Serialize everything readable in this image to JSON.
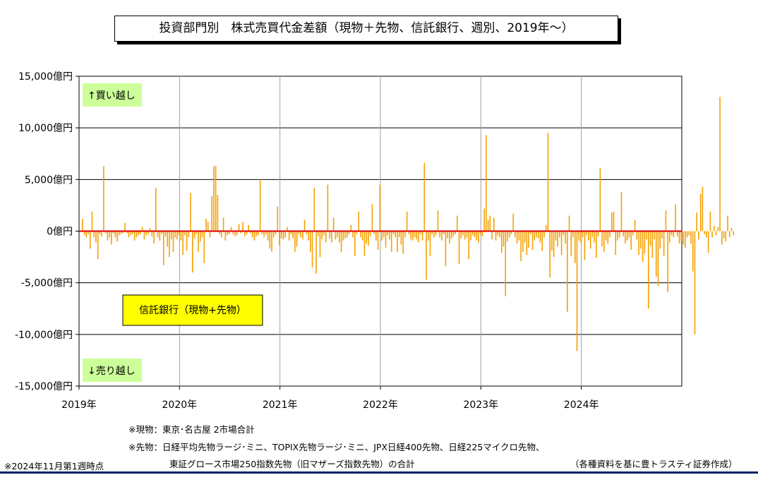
{
  "title": "投資部門別　株式売買代金差額（現物＋先物、信託銀行、週別、2019年～）",
  "legend_label": "信託銀行（現物+先物）",
  "buy_label": "↑買い越し",
  "sell_label": "↓売り越し",
  "notes": {
    "genbutsu": "※現物：東京･名古屋 2市場合計",
    "sakimono_1": "※先物：日経平均先物ラージ･ミニ、TOPIX先物ラージ･ミニ、JPX日経400先物、日経225マイクロ先物、",
    "sakimono_2": "東証グロース市場250指数先物（旧マザーズ指数先物）の合計",
    "as_of": "※2024年11月第1週時点",
    "source": "（各種資料を基に豊トラスティ証券作成）"
  },
  "colors": {
    "bar": "#f5a000",
    "zero_line": "#e00000",
    "grid": "#000000",
    "year_line": "#a0a0a0",
    "label_bg": "#ccff99",
    "legend_bg": "#ffff00",
    "footer": "#002060"
  },
  "chart_data": {
    "type": "bar",
    "title": "投資部門別　株式売買代金差額（現物＋先物、信託銀行、週別、2019年～）",
    "unit": "億円",
    "ylim": [
      -15000,
      15000
    ],
    "yticks": [
      "15,000億円",
      "10,000億円",
      "5,000億円",
      "0億円",
      "-5,000億円",
      "-10,000億円",
      "-15,000億円"
    ],
    "ytick_values": [
      15000,
      10000,
      5000,
      0,
      -5000,
      -10000,
      -15000
    ],
    "xlabels": [
      "2019年",
      "2020年",
      "2021年",
      "2022年",
      "2023年",
      "2024年"
    ],
    "x_range": [
      "2019-01",
      "2024-11"
    ],
    "grid": true,
    "series": [
      {
        "values": [
          1200,
          -400,
          -600,
          -300,
          -1700,
          1900,
          -600,
          -1100,
          -2700,
          -300,
          -500,
          6300,
          -200,
          -900,
          -600,
          -1300,
          -200,
          -600,
          -1000,
          -400,
          -300,
          -200,
          800,
          -200,
          -600,
          -400,
          -300,
          -900,
          -600,
          -400,
          -300,
          400,
          -800,
          -400,
          -300,
          300,
          -500,
          -1200,
          4200,
          -600,
          -900,
          -300,
          -3300,
          -500,
          -1500,
          -2500,
          -800,
          -2000,
          -600,
          -800,
          -400,
          -900,
          -2300,
          -400,
          -1900,
          -600,
          3700,
          -4000,
          -700,
          -300,
          -2000,
          -1000,
          -600,
          -3100,
          1200,
          900,
          -600,
          3400,
          6300,
          6300,
          3500,
          -300,
          -600,
          1300,
          -900,
          -400,
          -300,
          400,
          -300,
          -500,
          -400,
          700,
          -200,
          900,
          -500,
          -300,
          600,
          -200,
          -600,
          -900,
          -500,
          -400,
          5000,
          -300,
          -600,
          -300,
          -900,
          -1700,
          -2000,
          -600,
          -300,
          2400,
          -1400,
          -700,
          -800,
          -600,
          400,
          -900,
          -300,
          -700,
          -2000,
          -1500,
          -300,
          -600,
          -800,
          1100,
          -300,
          -900,
          -2000,
          -3500,
          4200,
          -4100,
          -500,
          -2500,
          -800,
          -400,
          -1100,
          4500,
          -700,
          -1100,
          1300,
          -800,
          -600,
          -1100,
          -2000,
          -900,
          -700,
          -600,
          -300,
          600,
          -600,
          -2400,
          -300,
          1900,
          -600,
          -900,
          -2400,
          -1200,
          -1400,
          -500,
          2600,
          -300,
          -900,
          -1800,
          4500,
          -900,
          -600,
          -1600,
          -400,
          -800,
          -2000,
          -300,
          -600,
          -2000,
          -600,
          -1300,
          -2200,
          -600,
          1900,
          -300,
          -800,
          -900,
          -600,
          -800,
          -1100,
          -300,
          -900,
          6600,
          -4700,
          -900,
          -2400,
          -300,
          -600,
          -400,
          2000,
          -600,
          -900,
          -300,
          -3400,
          -700,
          -1200,
          -700,
          -500,
          -300,
          1500,
          -3200,
          -700,
          -400,
          -800,
          -600,
          -2700,
          -900,
          -400,
          -600,
          -900,
          -1100,
          -300,
          -500,
          2200,
          9300,
          1100,
          1500,
          -800,
          1300,
          -900,
          -400,
          -600,
          -2100,
          -1500,
          -6300,
          -1000,
          -600,
          -300,
          1700,
          -600,
          -1200,
          -900,
          -2900,
          -2000,
          -1100,
          -2300,
          -1600,
          -300,
          -1800,
          -900,
          -600,
          -700,
          -1100,
          -1900,
          -600,
          600,
          9500,
          -4500,
          -1900,
          -2500,
          -900,
          -1500,
          -600,
          -2300,
          -400,
          -1200,
          -7800,
          1500,
          -2400,
          -600,
          -3100,
          -11600,
          -900,
          -1100,
          -600,
          -2800,
          -400,
          -900,
          -1700,
          -600,
          -1100,
          -2600,
          -500,
          6100,
          -1500,
          -2000,
          -900,
          -1200,
          -600,
          1800,
          1900,
          -2300,
          -900,
          -600,
          3800,
          -500,
          -1200,
          -900,
          -600,
          -1800,
          -400,
          1100,
          -800,
          -2300,
          -1700,
          -3000,
          -2200,
          -800,
          -7500,
          -1400,
          -2600,
          -800,
          -4400,
          -5300,
          -1700,
          -700,
          -2400,
          2000,
          -5900,
          -1100,
          -400,
          -600,
          2600,
          -500,
          -1200,
          -900,
          -1300,
          -1600,
          -600,
          -400,
          -1200,
          -3900,
          -10000,
          1800,
          -800,
          3600,
          4300,
          -300,
          -600,
          -2100,
          1900,
          -600,
          500,
          -400,
          400,
          13000,
          -1300,
          -700,
          -1000,
          1500,
          -600,
          300,
          -400
        ]
      }
    ]
  }
}
